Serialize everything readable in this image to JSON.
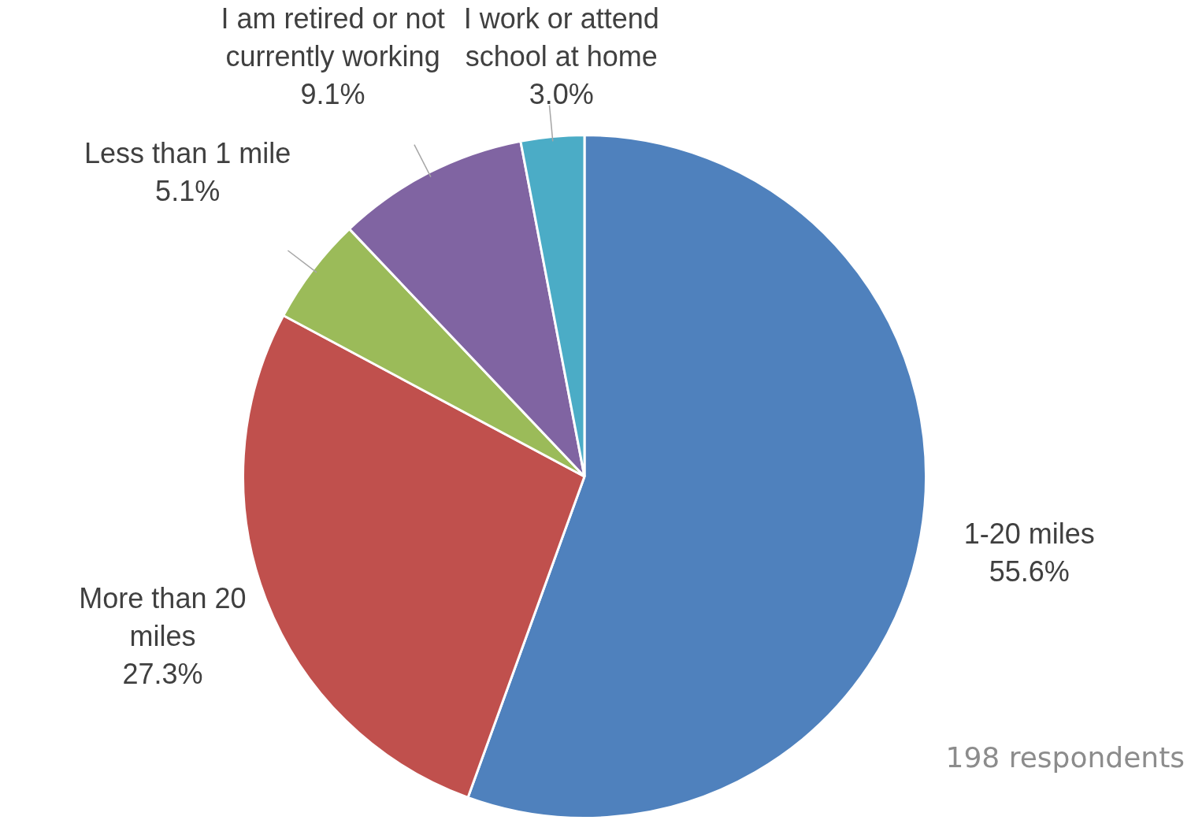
{
  "chart_data": {
    "type": "pie",
    "categories": [
      "1-20 miles",
      "More than 20 miles",
      "Less than 1 mile",
      "I am retired or not currently working",
      "I work or attend school at home"
    ],
    "values": [
      55.6,
      27.3,
      5.1,
      9.1,
      3.0
    ],
    "value_labels": [
      "55.6%",
      "27.3%",
      "5.1%",
      "9.1%",
      "3.0%"
    ],
    "colors": [
      "#4f81bd",
      "#c0504d",
      "#9bbb59",
      "#8064a2",
      "#4bacc6"
    ],
    "annotations": [
      "198 respondents"
    ],
    "legend": false
  }
}
